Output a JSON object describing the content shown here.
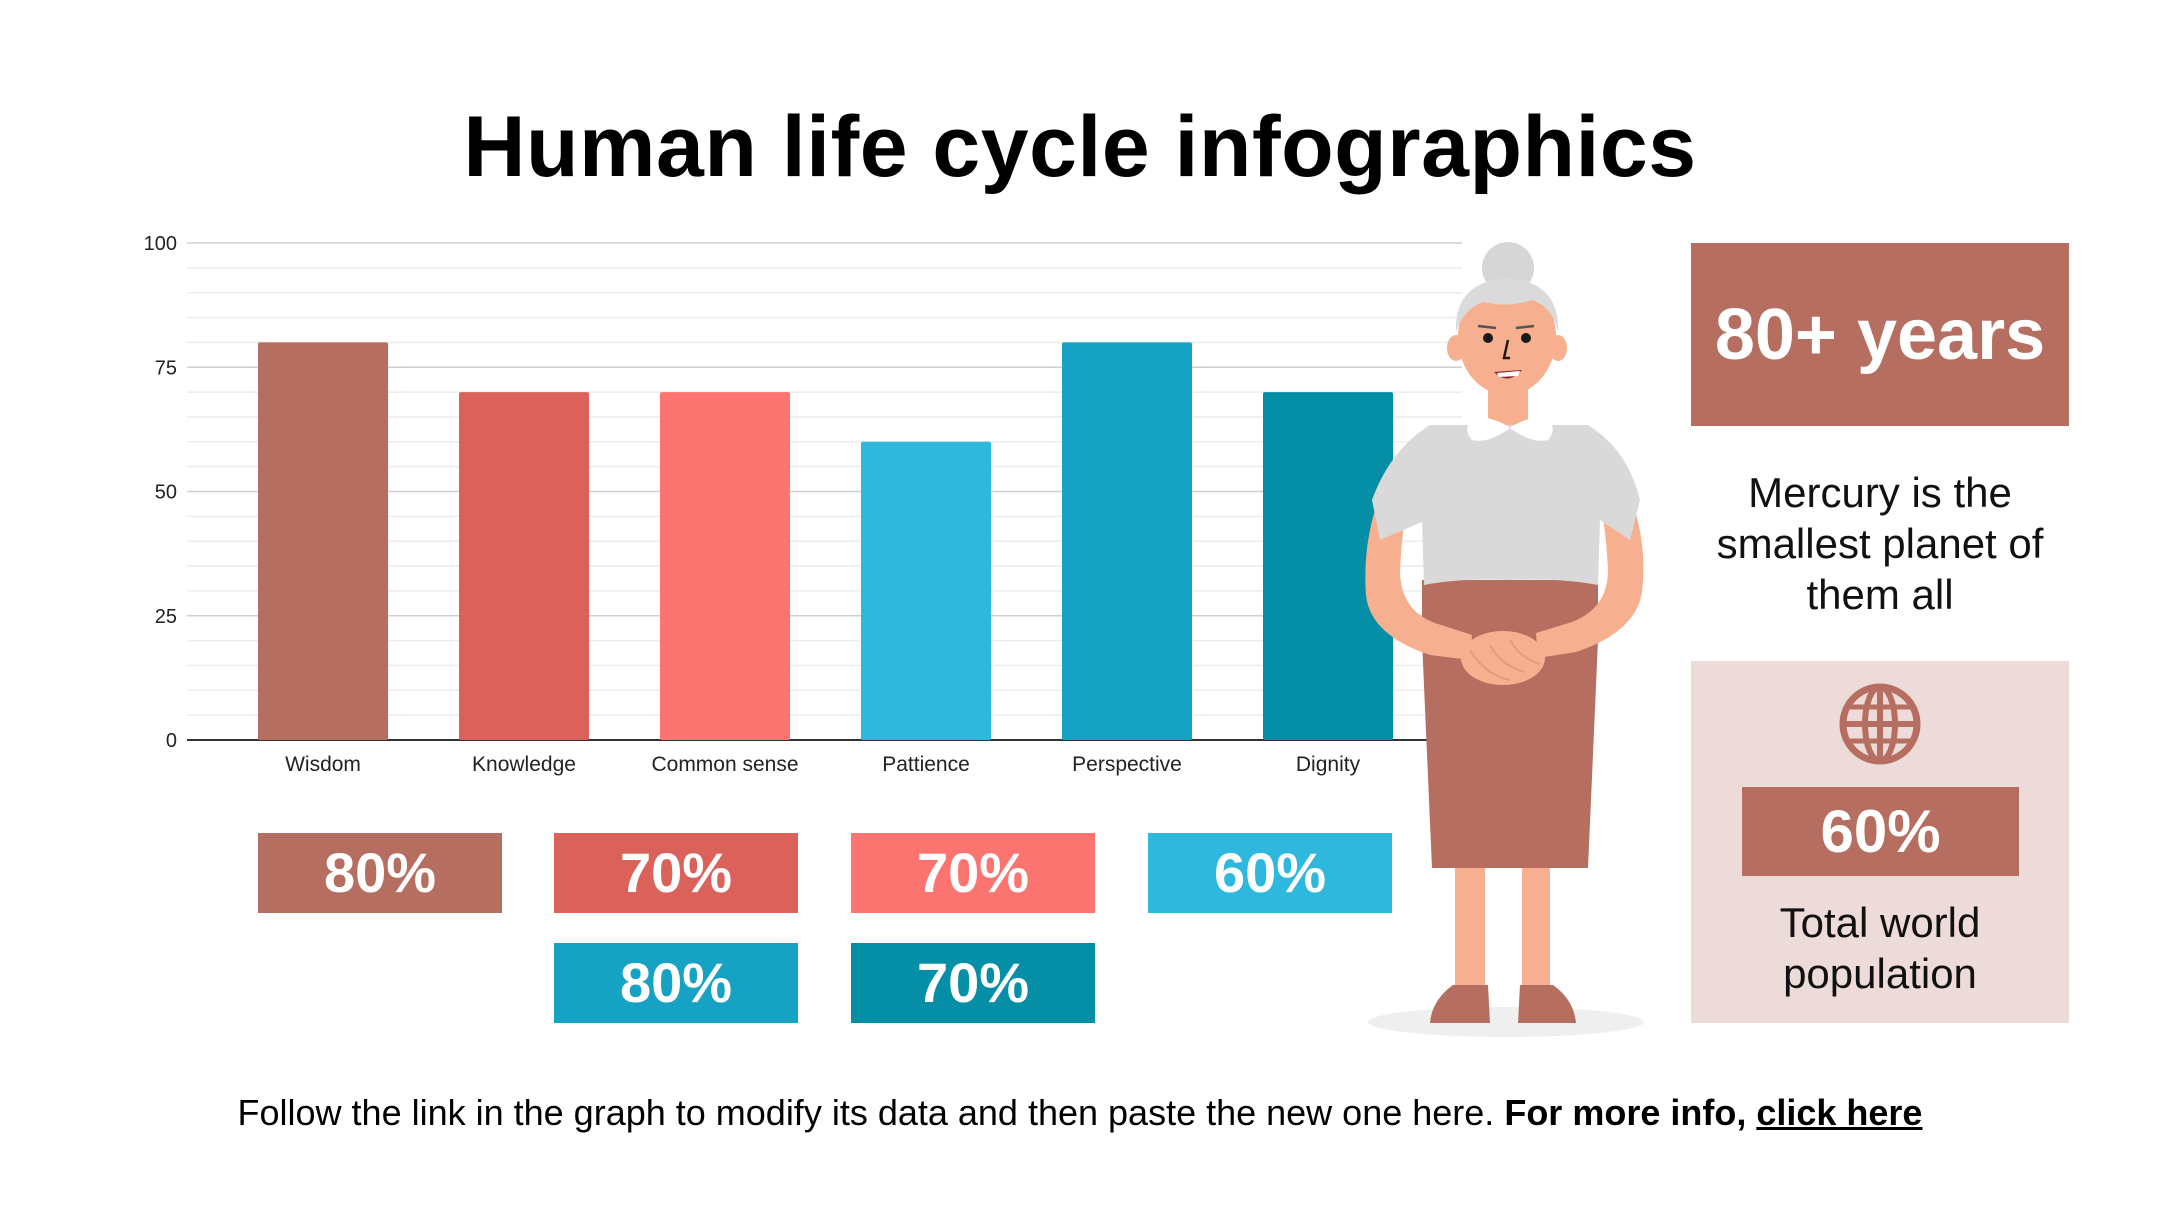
{
  "title": "Human life cycle infographics",
  "chart_data": {
    "type": "bar",
    "categories": [
      "Wisdom",
      "Knowledge",
      "Common sense",
      "Pattience",
      "Perspective",
      "Dignity"
    ],
    "values": [
      80,
      70,
      70,
      60,
      80,
      70
    ],
    "colors": [
      "#b56e5f",
      "#da625a",
      "#fb746f",
      "#2fb8de",
      "#16a2c3",
      "#058fa6"
    ],
    "ylim": [
      0,
      100
    ],
    "yticks": [
      0,
      25,
      50,
      75,
      100
    ],
    "grid": true
  },
  "percent_boxes": [
    {
      "label": "80%",
      "color": "#b56e5f"
    },
    {
      "label": "70%",
      "color": "#da625a"
    },
    {
      "label": "70%",
      "color": "#fb746f"
    },
    {
      "label": "60%",
      "color": "#2fb8de"
    },
    {
      "label": "80%",
      "color": "#16a2c3"
    },
    {
      "label": "70%",
      "color": "#058fa6"
    }
  ],
  "side": {
    "years": "80+ years",
    "mercury_text": "Mercury is the smallest planet of them all",
    "globe_icon": "globe-icon",
    "population_pct": "60%",
    "population_label": "Total world population"
  },
  "footer": {
    "text": "Follow the link in the graph to modify its data and then paste the new one here.",
    "bold_text": "For more info,",
    "link_text": "click here"
  }
}
